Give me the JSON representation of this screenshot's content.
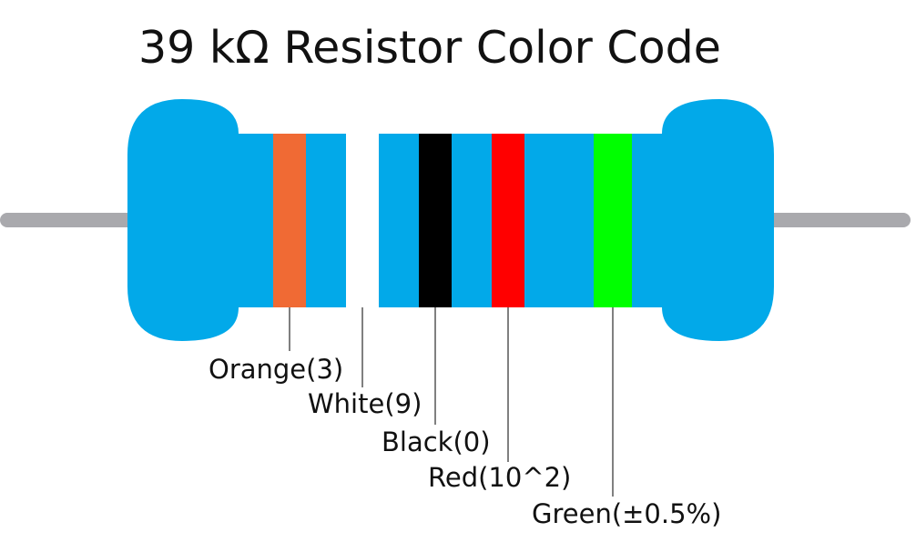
{
  "title": "39 kΩ Resistor Color Code",
  "body_color": "#02A9E9",
  "lead_color": "#A9A9AD",
  "bands": [
    {
      "name": "orange",
      "color": "#F06A34",
      "label": "Orange(3)"
    },
    {
      "name": "white",
      "color": "#FFFFFF",
      "label": "White(9)"
    },
    {
      "name": "black",
      "color": "#000000",
      "label": "Black(0)"
    },
    {
      "name": "red",
      "color": "#FF0000",
      "label": "Red(10^2)"
    },
    {
      "name": "green",
      "color": "#00FF00",
      "label": "Green(±0.5%)"
    }
  ]
}
